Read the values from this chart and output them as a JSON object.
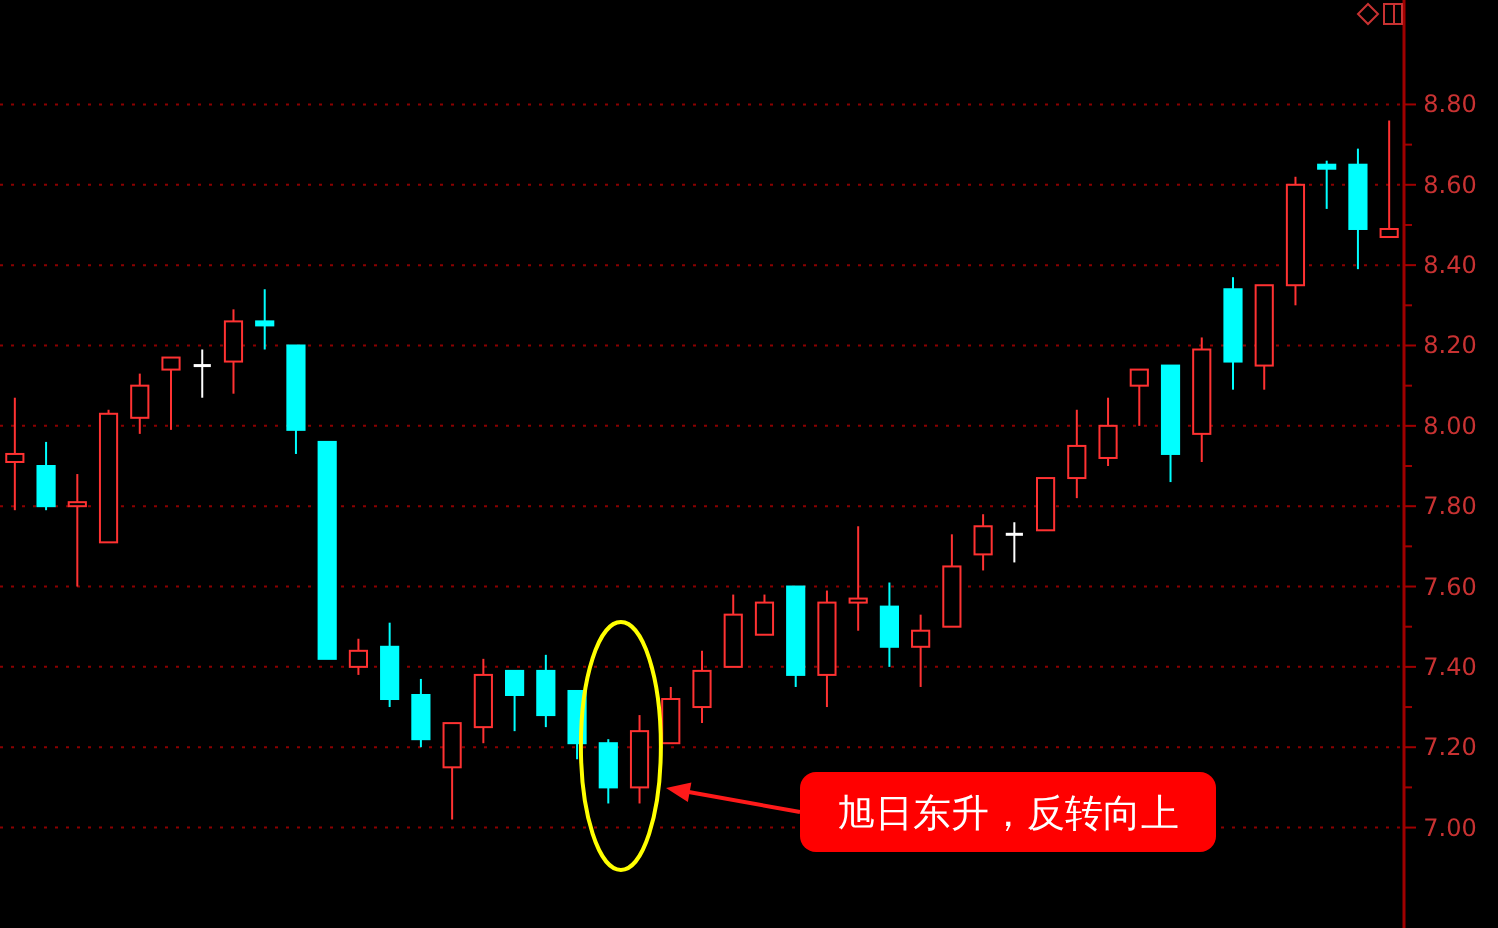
{
  "chart_data": {
    "type": "candlestick",
    "categories": [
      null,
      null,
      null,
      null,
      null,
      null,
      null,
      null,
      null,
      null,
      null,
      null,
      null,
      null,
      null,
      null,
      null,
      null,
      null,
      null,
      null,
      null,
      null,
      null,
      null,
      null,
      null,
      null,
      null,
      null,
      null,
      null,
      null,
      null,
      null,
      null,
      null,
      null,
      null,
      null,
      null,
      null,
      null,
      null,
      null
    ],
    "ohlc": [
      [
        7.91,
        8.07,
        7.79,
        7.93
      ],
      [
        7.9,
        7.96,
        7.79,
        7.8
      ],
      [
        7.8,
        7.88,
        7.6,
        7.81
      ],
      [
        7.71,
        8.04,
        7.71,
        8.03
      ],
      [
        8.02,
        8.13,
        7.98,
        8.1
      ],
      [
        8.14,
        8.17,
        7.99,
        8.17
      ],
      [
        8.15,
        8.19,
        8.07,
        8.15
      ],
      [
        8.16,
        8.29,
        8.08,
        8.26
      ],
      [
        8.26,
        8.34,
        8.19,
        8.25
      ],
      [
        8.2,
        8.2,
        7.93,
        7.99
      ],
      [
        7.96,
        7.96,
        7.42,
        7.42
      ],
      [
        7.4,
        7.47,
        7.38,
        7.44
      ],
      [
        7.45,
        7.51,
        7.3,
        7.32
      ],
      [
        7.33,
        7.37,
        7.2,
        7.22
      ],
      [
        7.15,
        7.26,
        7.02,
        7.26
      ],
      [
        7.25,
        7.42,
        7.21,
        7.38
      ],
      [
        7.39,
        7.39,
        7.24,
        7.33
      ],
      [
        7.39,
        7.43,
        7.25,
        7.28
      ],
      [
        7.34,
        7.34,
        7.17,
        7.21
      ],
      [
        7.21,
        7.22,
        7.06,
        7.1
      ],
      [
        7.1,
        7.28,
        7.06,
        7.24
      ],
      [
        7.21,
        7.35,
        7.21,
        7.32
      ],
      [
        7.3,
        7.44,
        7.26,
        7.39
      ],
      [
        7.4,
        7.58,
        7.4,
        7.53
      ],
      [
        7.48,
        7.58,
        7.48,
        7.56
      ],
      [
        7.6,
        7.6,
        7.35,
        7.38
      ],
      [
        7.38,
        7.59,
        7.3,
        7.56
      ],
      [
        7.56,
        7.75,
        7.49,
        7.57
      ],
      [
        7.55,
        7.61,
        7.4,
        7.45
      ],
      [
        7.45,
        7.53,
        7.35,
        7.49
      ],
      [
        7.5,
        7.73,
        7.5,
        7.65
      ],
      [
        7.68,
        7.78,
        7.64,
        7.75
      ],
      [
        7.73,
        7.76,
        7.66,
        7.73
      ],
      [
        7.74,
        7.87,
        7.74,
        7.87
      ],
      [
        7.87,
        8.04,
        7.82,
        7.95
      ],
      [
        7.92,
        8.07,
        7.9,
        8.0
      ],
      [
        8.1,
        8.14,
        8.0,
        8.14
      ],
      [
        8.15,
        8.15,
        7.86,
        7.93
      ],
      [
        7.98,
        8.22,
        7.91,
        8.19
      ],
      [
        8.34,
        8.37,
        8.09,
        8.16
      ],
      [
        8.15,
        8.35,
        8.09,
        8.35
      ],
      [
        8.35,
        8.62,
        8.3,
        8.6
      ],
      [
        8.65,
        8.66,
        8.54,
        8.64
      ],
      [
        8.65,
        8.69,
        8.39,
        8.49
      ],
      [
        8.47,
        8.76,
        8.47,
        8.49
      ]
    ],
    "colors": [
      "#ff3232",
      "#00ffff",
      "#ff3232",
      "#ff3232",
      "#ff3232",
      "#ff3232",
      "#ffffff",
      "#ff3232",
      "#00ffff",
      "#00ffff",
      "#00ffff",
      "#ff3232",
      "#00ffff",
      "#00ffff",
      "#ff3232",
      "#ff3232",
      "#00ffff",
      "#00ffff",
      "#00ffff",
      "#00ffff",
      "#ff3232",
      "#ff3232",
      "#ff3232",
      "#ff3232",
      "#ff3232",
      "#00ffff",
      "#ff3232",
      "#ff3232",
      "#00ffff",
      "#ff3232",
      "#ff3232",
      "#ff3232",
      "#ffffff",
      "#ff3232",
      "#ff3232",
      "#ff3232",
      "#ff3232",
      "#00ffff",
      "#ff3232",
      "#00ffff",
      "#ff3232",
      "#ff3232",
      "#00ffff",
      "#00ffff",
      "#ff3232"
    ],
    "ylim": [
      6.75,
      9.06
    ],
    "yticks": [
      {
        "value": 7.0,
        "label": "7.00"
      },
      {
        "value": 7.1,
        "label": null
      },
      {
        "value": 7.2,
        "label": "7.20"
      },
      {
        "value": 7.3,
        "label": null
      },
      {
        "value": 7.4,
        "label": "7.40"
      },
      {
        "value": 7.5,
        "label": null
      },
      {
        "value": 7.6,
        "label": "7.60"
      },
      {
        "value": 7.7,
        "label": null
      },
      {
        "value": 7.8,
        "label": "7.80"
      },
      {
        "value": 7.9,
        "label": null
      },
      {
        "value": 8.0,
        "label": "8.00"
      },
      {
        "value": 8.1,
        "label": null
      },
      {
        "value": 8.2,
        "label": "8.20"
      },
      {
        "value": 8.3,
        "label": null
      },
      {
        "value": 8.4,
        "label": "8.40"
      },
      {
        "value": 8.5,
        "label": null
      },
      {
        "value": 8.6,
        "label": "8.60"
      },
      {
        "value": 8.7,
        "label": null
      },
      {
        "value": 8.8,
        "label": "8.80"
      }
    ],
    "grid": "y",
    "tick_labels": "y",
    "annotations": [
      "旭日东升，反转向上"
    ]
  }
}
